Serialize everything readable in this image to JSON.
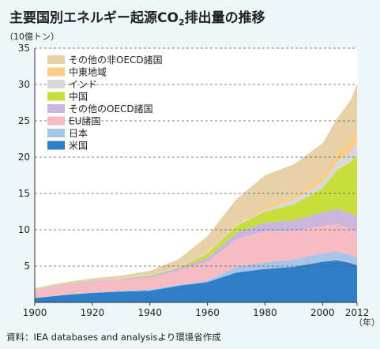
{
  "chart_data": {
    "type": "area",
    "stacked": true,
    "title_main": "主要国別エネルギー起源CO",
    "title_sub": "2",
    "title_suffix": "排出量の推移",
    "ylabel": "（10億トン）",
    "xunit": "（年）",
    "source": "資料：IEA databases and analysisより環境省作成",
    "ylim": [
      0,
      35
    ],
    "yticks": [
      5,
      10,
      15,
      20,
      25,
      30,
      35
    ],
    "xlim": [
      1900,
      2012
    ],
    "xticks": [
      1900,
      1920,
      1940,
      1960,
      1980,
      2000,
      2012
    ],
    "grid": "horizontal-dashed",
    "legend_position": "top-left",
    "x": [
      1900,
      1910,
      1920,
      1930,
      1940,
      1950,
      1960,
      1970,
      1980,
      1990,
      2000,
      2005,
      2010,
      2012
    ],
    "series": [
      {
        "name": "米国",
        "color": "#2f7fc8",
        "values": [
          0.6,
          1.0,
          1.3,
          1.5,
          1.6,
          2.3,
          2.8,
          4.1,
          4.6,
          4.9,
          5.6,
          5.8,
          5.4,
          5.1
        ]
      },
      {
        "name": "日本",
        "color": "#a8c4e6",
        "values": [
          0.05,
          0.05,
          0.1,
          0.1,
          0.2,
          0.1,
          0.2,
          0.8,
          0.9,
          1.0,
          1.2,
          1.2,
          1.1,
          1.2
        ]
      },
      {
        "name": "EU諸国",
        "color": "#f7bcc3",
        "values": [
          1.0,
          1.3,
          1.4,
          1.5,
          1.6,
          2.0,
          2.6,
          3.8,
          4.3,
          3.9,
          3.7,
          3.8,
          3.5,
          3.4
        ]
      },
      {
        "name": "その他のOECD諸国",
        "color": "#cab5dd",
        "values": [
          0.05,
          0.1,
          0.1,
          0.1,
          0.2,
          0.3,
          0.5,
          0.9,
          1.2,
          1.5,
          1.9,
          2.1,
          2.2,
          2.3
        ]
      },
      {
        "name": "中国",
        "color": "#c6df3a",
        "values": [
          0.0,
          0.0,
          0.0,
          0.05,
          0.1,
          0.1,
          0.6,
          0.9,
          1.5,
          2.2,
          3.3,
          5.3,
          7.2,
          8.3
        ]
      },
      {
        "name": "インド",
        "color": "#d8d8d8",
        "values": [
          0.0,
          0.0,
          0.0,
          0.05,
          0.05,
          0.1,
          0.1,
          0.2,
          0.3,
          0.6,
          0.9,
          1.1,
          1.6,
          1.9
        ]
      },
      {
        "name": "中東地域",
        "color": "#f9cd85",
        "values": [
          0.0,
          0.0,
          0.0,
          0.0,
          0.0,
          0.05,
          0.1,
          0.2,
          0.5,
          0.6,
          0.9,
          1.2,
          1.5,
          1.6
        ]
      },
      {
        "name": "その他の非OECD諸国",
        "color": "#e7d1a8",
        "values": [
          0.25,
          0.3,
          0.4,
          0.4,
          0.6,
          1.0,
          2.2,
          3.3,
          4.2,
          4.3,
          4.4,
          4.8,
          5.5,
          6.3
        ]
      }
    ]
  }
}
